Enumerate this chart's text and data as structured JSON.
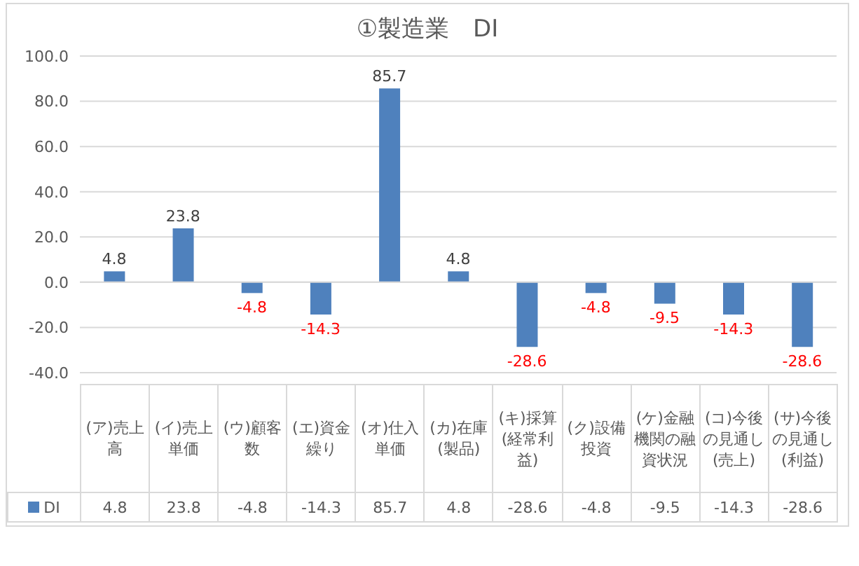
{
  "chart_data": {
    "type": "bar",
    "title": "①製造業　DI",
    "categories": [
      "(ア)売上高",
      "(イ)売上単価",
      "(ウ)顧客数",
      "(エ)資金繰り",
      "(オ)仕入単価",
      "(カ)在庫(製品)",
      "(キ)採算(経常利益)",
      "(ク)設備投資",
      "(ケ)金融機関の融資状況",
      "(コ)今後の見通し(売上)",
      "(サ)今後の見通し(利益)"
    ],
    "series": [
      {
        "name": "DI",
        "color": "#4f81bd",
        "values": [
          4.8,
          23.8,
          -4.8,
          -14.3,
          85.7,
          4.8,
          -28.6,
          -4.8,
          -9.5,
          -14.3,
          -28.6
        ]
      }
    ],
    "annotations": [
      {
        "text": "4.8",
        "x": "(ア)売上高",
        "y": 4.8
      },
      {
        "text": "23.8",
        "x": "(イ)売上単価",
        "y": 23.8
      },
      {
        "text": "-4.8",
        "x": "(ウ)顧客数",
        "y": -4.8
      },
      {
        "text": "-14.3",
        "x": "(エ)資金繰り",
        "y": -14.3
      },
      {
        "text": "85.7",
        "x": "(オ)仕入単価",
        "y": 85.7
      },
      {
        "text": "4.8",
        "x": "(カ)在庫(製品)",
        "y": 4.8
      },
      {
        "text": "-28.6",
        "x": "(キ)採算(経常利益)",
        "y": -28.6
      },
      {
        "text": "-4.8",
        "x": "(ク)設備投資",
        "y": -4.8
      },
      {
        "text": "-9.5",
        "x": "(ケ)金融機関の融資状況",
        "y": -9.5
      },
      {
        "text": "-14.3",
        "x": "(コ)今後の見通し(売上)",
        "y": -14.3
      },
      {
        "text": "-28.6",
        "x": "(サ)今後の見通し(利益)",
        "y": -28.6
      }
    ],
    "ylim": [
      -40,
      100
    ],
    "yticks": [
      {
        "value": -40,
        "label": "-40.0"
      },
      {
        "value": -20,
        "label": "-20.0"
      },
      {
        "value": 0,
        "label": "0.0"
      },
      {
        "value": 20,
        "label": "20.0"
      },
      {
        "value": 40,
        "label": "40.0"
      },
      {
        "value": 60,
        "label": "60.0"
      },
      {
        "value": 80,
        "label": "80.0"
      },
      {
        "value": 100,
        "label": "100.0"
      }
    ],
    "grid": "y",
    "data_labels": true,
    "legend": "bottom"
  }
}
